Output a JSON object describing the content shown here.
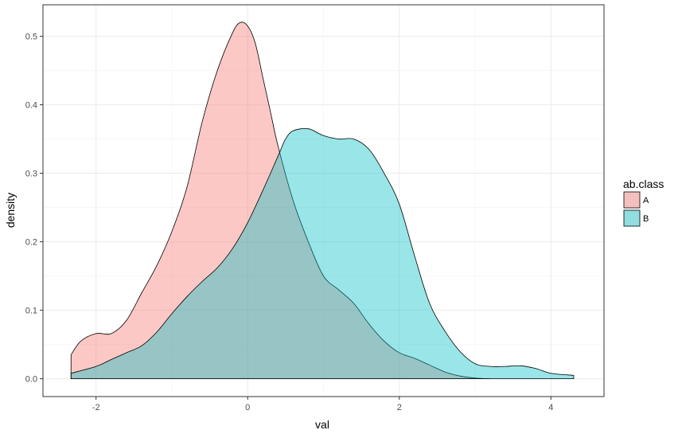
{
  "chart_data": {
    "type": "area",
    "xlabel": "val",
    "ylabel": "density",
    "xlim": [
      -2.7,
      4.7
    ],
    "ylim": [
      -0.026,
      0.546
    ],
    "x_ticks": [
      -2,
      0,
      2,
      4
    ],
    "y_ticks": [
      0.0,
      0.1,
      0.2,
      0.3,
      0.4,
      0.5
    ],
    "x_tick_labels": [
      "-2",
      "0",
      "2",
      "4"
    ],
    "y_tick_labels": [
      "0.0",
      "0.1",
      "0.2",
      "0.3",
      "0.4",
      "0.5"
    ],
    "grid": true,
    "legend": {
      "title": "ab.class",
      "position": "right"
    },
    "colors": {
      "A": "#F8766D",
      "B": "#00BFC4"
    },
    "fill_opacity": 0.4,
    "series": [
      {
        "name": "A",
        "x": [
          -2.33,
          -2.2,
          -2.0,
          -1.8,
          -1.6,
          -1.4,
          -1.2,
          -1.0,
          -0.8,
          -0.6,
          -0.4,
          -0.2,
          -0.1,
          0.0,
          0.1,
          0.2,
          0.3,
          0.4,
          0.6,
          0.8,
          1.0,
          1.2,
          1.4,
          1.6,
          1.8,
          2.0,
          2.2,
          2.4,
          2.6,
          2.8,
          3.0,
          3.2
        ],
        "y": [
          0.035,
          0.055,
          0.066,
          0.066,
          0.085,
          0.125,
          0.165,
          0.215,
          0.28,
          0.375,
          0.45,
          0.505,
          0.52,
          0.515,
          0.49,
          0.44,
          0.39,
          0.34,
          0.26,
          0.2,
          0.15,
          0.13,
          0.11,
          0.08,
          0.055,
          0.038,
          0.03,
          0.02,
          0.01,
          0.004,
          0.001,
          0.0
        ]
      },
      {
        "name": "B",
        "x": [
          -2.33,
          -2.0,
          -1.8,
          -1.6,
          -1.4,
          -1.2,
          -1.0,
          -0.8,
          -0.6,
          -0.4,
          -0.2,
          0.0,
          0.2,
          0.4,
          0.5,
          0.6,
          0.8,
          1.0,
          1.2,
          1.4,
          1.6,
          1.8,
          2.0,
          2.2,
          2.4,
          2.6,
          2.8,
          3.0,
          3.2,
          3.4,
          3.6,
          3.8,
          4.0,
          4.3
        ],
        "y": [
          0.008,
          0.018,
          0.028,
          0.038,
          0.048,
          0.068,
          0.095,
          0.12,
          0.142,
          0.162,
          0.19,
          0.228,
          0.275,
          0.325,
          0.35,
          0.362,
          0.365,
          0.355,
          0.35,
          0.35,
          0.335,
          0.3,
          0.255,
          0.18,
          0.11,
          0.07,
          0.04,
          0.022,
          0.018,
          0.018,
          0.019,
          0.015,
          0.008,
          0.005
        ]
      }
    ]
  }
}
